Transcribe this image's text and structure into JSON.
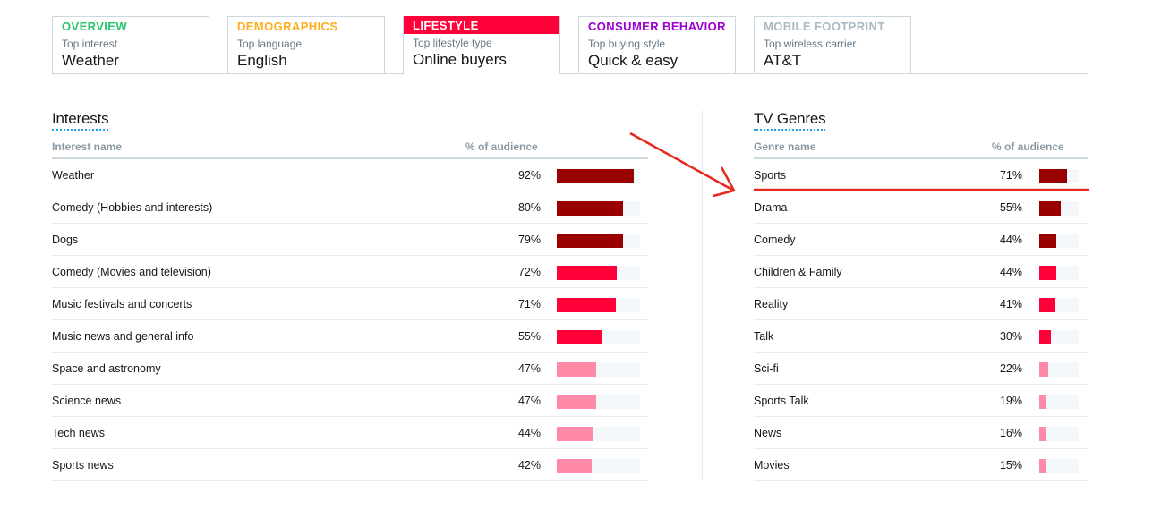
{
  "tabs": [
    {
      "title": "OVERVIEW",
      "subtitle": "Top interest",
      "value": "Weather",
      "color": "#2bc46e",
      "active": false
    },
    {
      "title": "DEMOGRAPHICS",
      "subtitle": "Top language",
      "value": "English",
      "color": "#ffad1f",
      "active": false
    },
    {
      "title": "LIFESTYLE",
      "subtitle": "Top lifestyle type",
      "value": "Online buyers",
      "color": "#ff0039",
      "active": true
    },
    {
      "title": "CONSUMER BEHAVIOR",
      "subtitle": "Top buying style",
      "value": "Quick & easy",
      "color": "#9d00d1",
      "active": false
    },
    {
      "title": "MOBILE FOOTPRINT",
      "subtitle": "Top wireless carrier",
      "value": "AT&T",
      "color": "#aab8c2",
      "active": false
    }
  ],
  "interests": {
    "title": "Interests",
    "col_name": "Interest name",
    "col_pct": "% of audience",
    "rows": [
      {
        "name": "Weather",
        "pct_label": "92%",
        "value": 0.92,
        "color": "#9b0000"
      },
      {
        "name": "Comedy (Hobbies and interests)",
        "pct_label": "80%",
        "value": 0.8,
        "color": "#9b0000"
      },
      {
        "name": "Dogs",
        "pct_label": "79%",
        "value": 0.79,
        "color": "#9b0000"
      },
      {
        "name": "Comedy (Movies and television)",
        "pct_label": "72%",
        "value": 0.72,
        "color": "#ff0039"
      },
      {
        "name": "Music festivals and concerts",
        "pct_label": "71%",
        "value": 0.71,
        "color": "#ff0039"
      },
      {
        "name": "Music news and general info",
        "pct_label": "55%",
        "value": 0.55,
        "color": "#ff0039"
      },
      {
        "name": "Space and astronomy",
        "pct_label": "47%",
        "value": 0.47,
        "color": "#ff8aa8"
      },
      {
        "name": "Science news",
        "pct_label": "47%",
        "value": 0.47,
        "color": "#ff8aa8"
      },
      {
        "name": "Tech news",
        "pct_label": "44%",
        "value": 0.44,
        "color": "#ff8aa8"
      },
      {
        "name": "Sports news",
        "pct_label": "42%",
        "value": 0.42,
        "color": "#ff8aa8"
      }
    ]
  },
  "tv_genres": {
    "title": "TV Genres",
    "col_name": "Genre name",
    "col_pct": "% of audience",
    "rows": [
      {
        "name": "Sports",
        "pct_label": "71%",
        "value": 0.71,
        "color": "#9b0000"
      },
      {
        "name": "Drama",
        "pct_label": "55%",
        "value": 0.55,
        "color": "#9b0000"
      },
      {
        "name": "Comedy",
        "pct_label": "44%",
        "value": 0.44,
        "color": "#9b0000"
      },
      {
        "name": "Children & Family",
        "pct_label": "44%",
        "value": 0.44,
        "color": "#ff0039"
      },
      {
        "name": "Reality",
        "pct_label": "41%",
        "value": 0.41,
        "color": "#ff0039"
      },
      {
        "name": "Talk",
        "pct_label": "30%",
        "value": 0.3,
        "color": "#ff0039"
      },
      {
        "name": "Sci-fi",
        "pct_label": "22%",
        "value": 0.22,
        "color": "#ff8aa8"
      },
      {
        "name": "Sports Talk",
        "pct_label": "19%",
        "value": 0.19,
        "color": "#ff8aa8"
      },
      {
        "name": "News",
        "pct_label": "16%",
        "value": 0.16,
        "color": "#ff8aa8"
      },
      {
        "name": "Movies",
        "pct_label": "15%",
        "value": 0.15,
        "color": "#ff8aa8"
      }
    ]
  },
  "annotation_color": "#e8281e"
}
